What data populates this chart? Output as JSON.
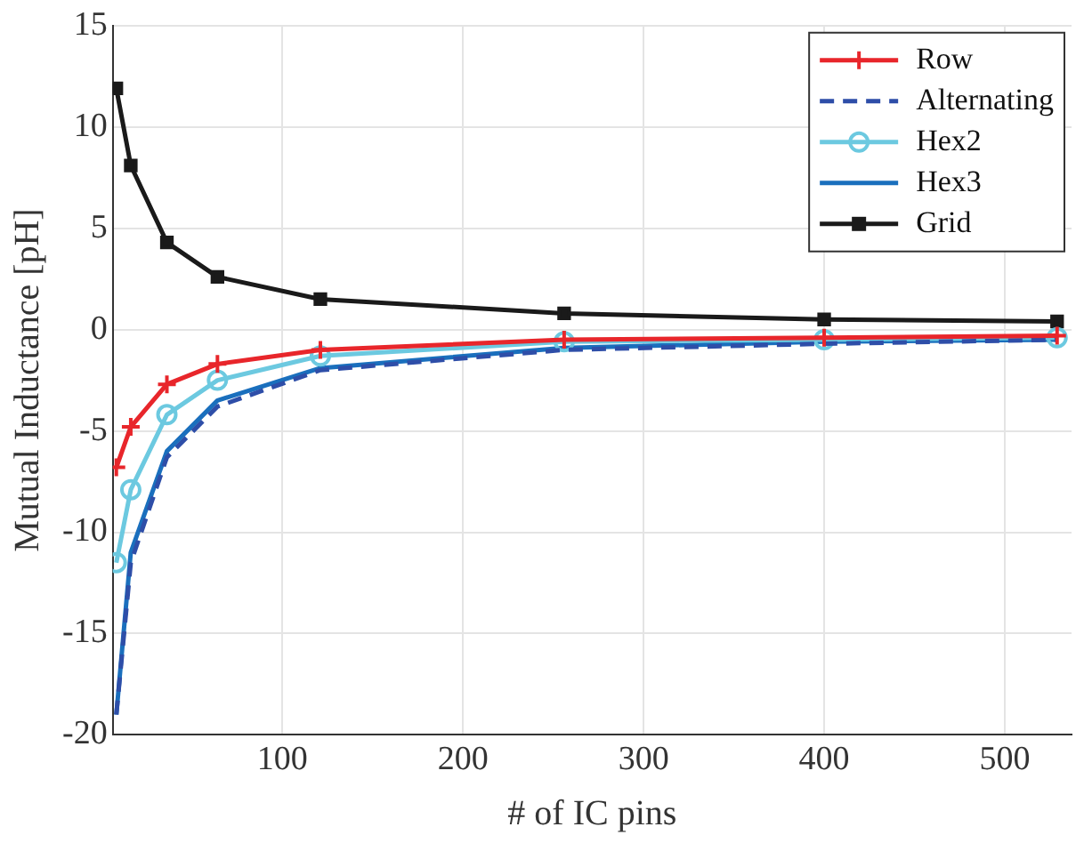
{
  "chart_data": {
    "type": "line",
    "xlabel": "# of IC pins",
    "ylabel": "Mutual Inductance [pH]",
    "x": [
      8,
      16,
      36,
      64,
      121,
      256,
      400,
      529
    ],
    "series": [
      {
        "name": "Row",
        "color": "#e8262b",
        "marker": "cross",
        "line_style": "solid",
        "values": [
          -6.8,
          -4.8,
          -2.7,
          -1.7,
          -1.0,
          -0.5,
          -0.4,
          -0.3
        ]
      },
      {
        "name": "Alternating",
        "color": "#2e4ea8",
        "marker": "none",
        "line_style": "dashed",
        "values": [
          -19,
          -11.5,
          -6.3,
          -3.8,
          -2.0,
          -1.0,
          -0.7,
          -0.5
        ]
      },
      {
        "name": "Hex2",
        "color": "#6cc9e0",
        "marker": "circle",
        "line_style": "solid",
        "values": [
          -11.5,
          -7.9,
          -4.2,
          -2.5,
          -1.3,
          -0.6,
          -0.5,
          -0.4
        ]
      },
      {
        "name": "Hex3",
        "color": "#1a6fbd",
        "marker": "none",
        "line_style": "solid",
        "values": [
          -19,
          -11,
          -6,
          -3.5,
          -1.9,
          -0.9,
          -0.6,
          -0.5
        ]
      },
      {
        "name": "Grid",
        "color": "#1a1a1a",
        "marker": "square",
        "line_style": "solid",
        "values": [
          11.9,
          8.1,
          4.3,
          2.6,
          1.5,
          0.8,
          0.5,
          0.4
        ]
      }
    ],
    "xlim": [
      6,
      537
    ],
    "xticks": [
      100,
      200,
      300,
      400,
      500
    ],
    "ylim": [
      -20,
      15
    ],
    "yticks": [
      -20,
      -15,
      -10,
      -5,
      0,
      5,
      10,
      15
    ],
    "grid": true,
    "legend": "top right"
  }
}
